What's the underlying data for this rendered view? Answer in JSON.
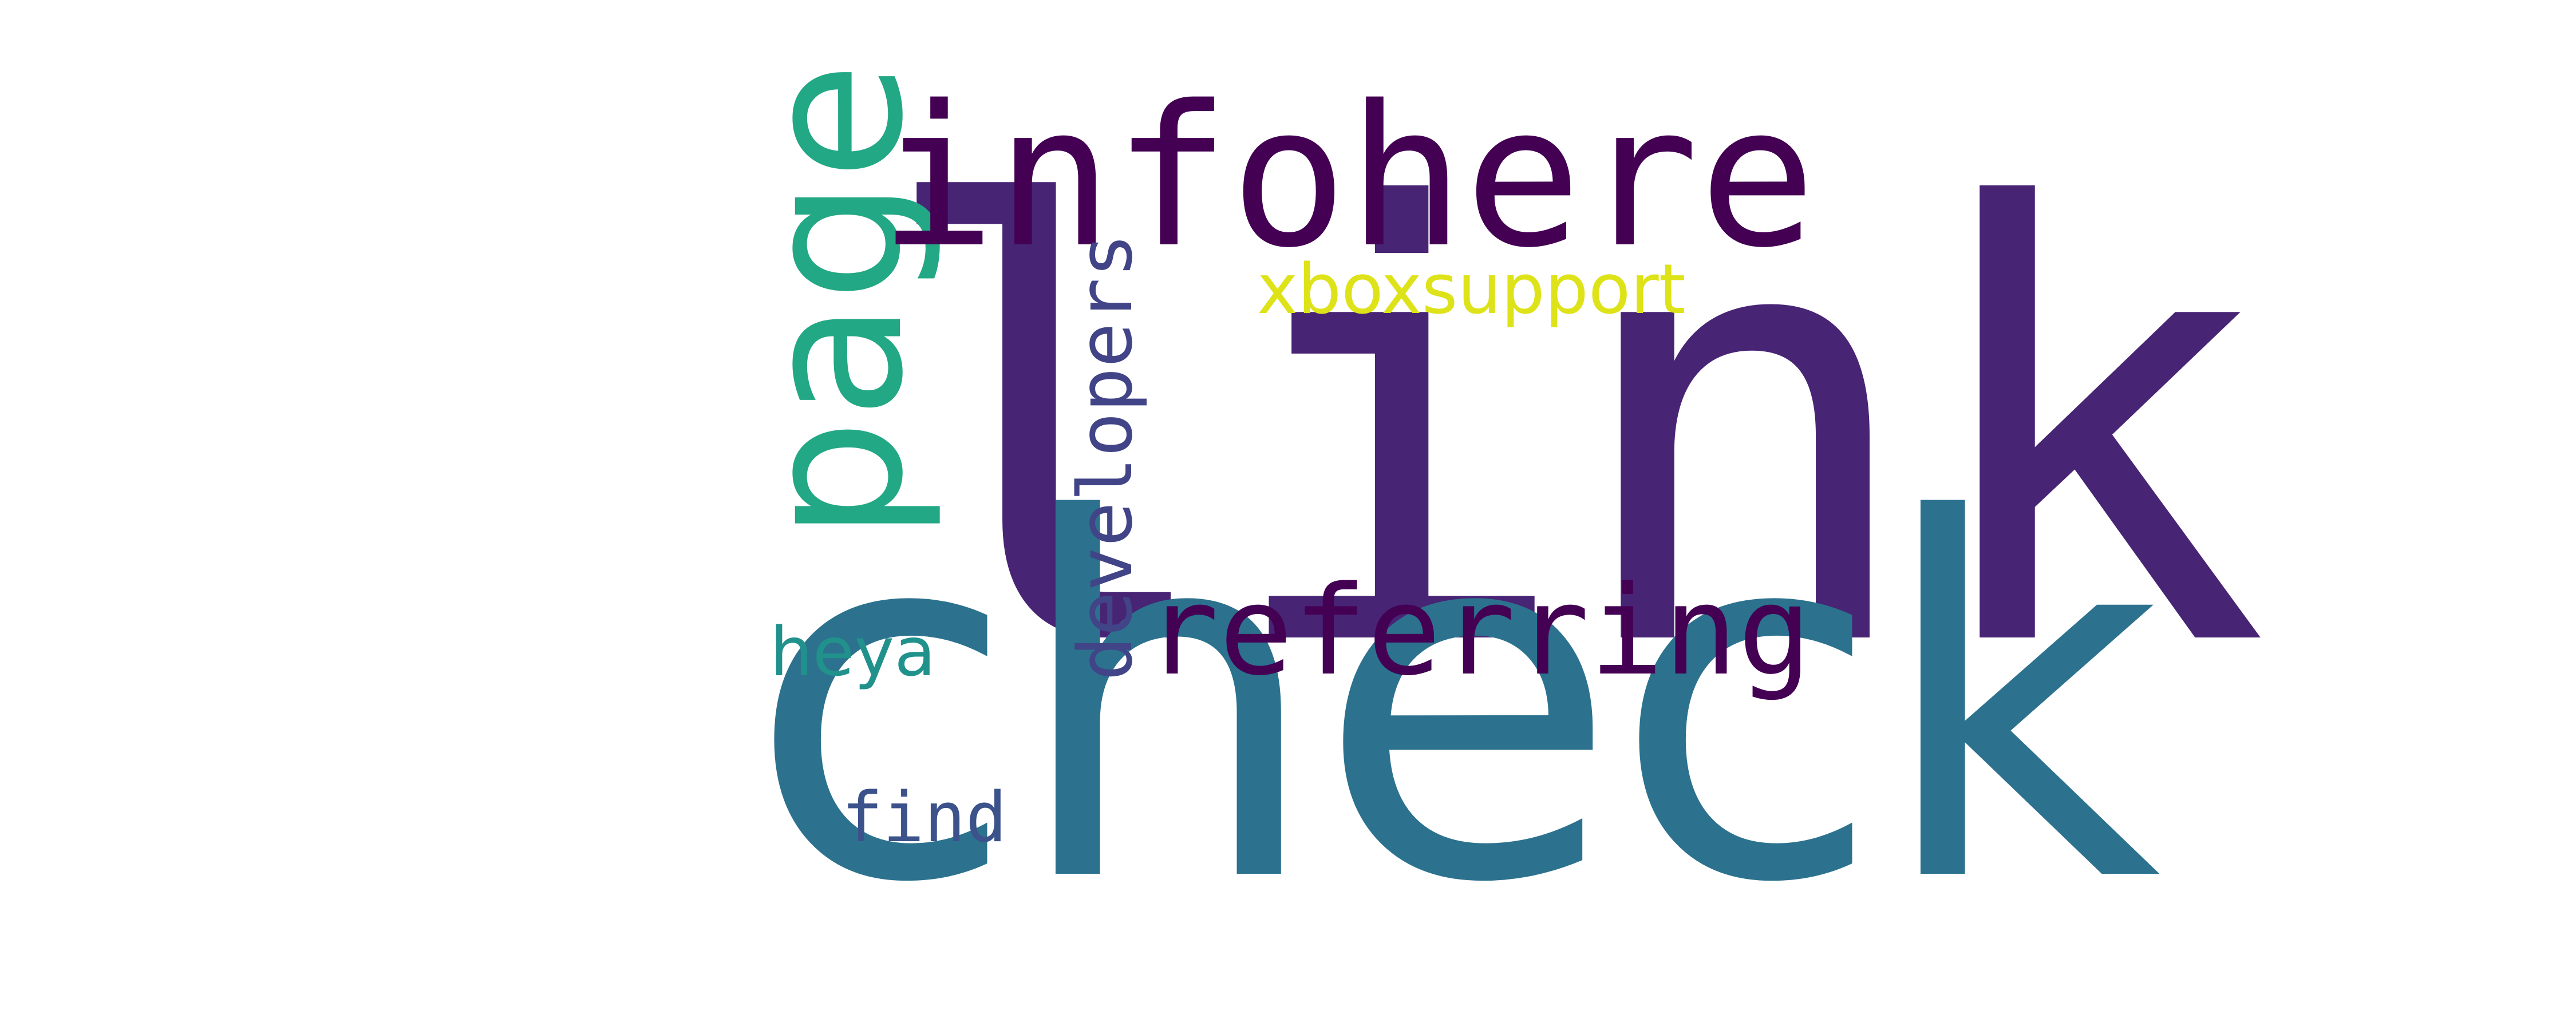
{
  "words": {
    "link": {
      "text": "link",
      "color": "#482475"
    },
    "check": {
      "text": "check",
      "color": "#2c728e"
    },
    "page": {
      "text": "page",
      "color": "#22a884"
    },
    "infohere": {
      "text": "infohere",
      "color": "#440154"
    },
    "referring": {
      "text": "referring",
      "color": "#440154"
    },
    "developers": {
      "text": "developers",
      "color": "#414487"
    },
    "xboxsupport": {
      "text": "xboxsupport",
      "color": "#dde318"
    },
    "heya": {
      "text": "heya",
      "color": "#21918c"
    },
    "find": {
      "text": "find",
      "color": "#3b528b"
    }
  }
}
